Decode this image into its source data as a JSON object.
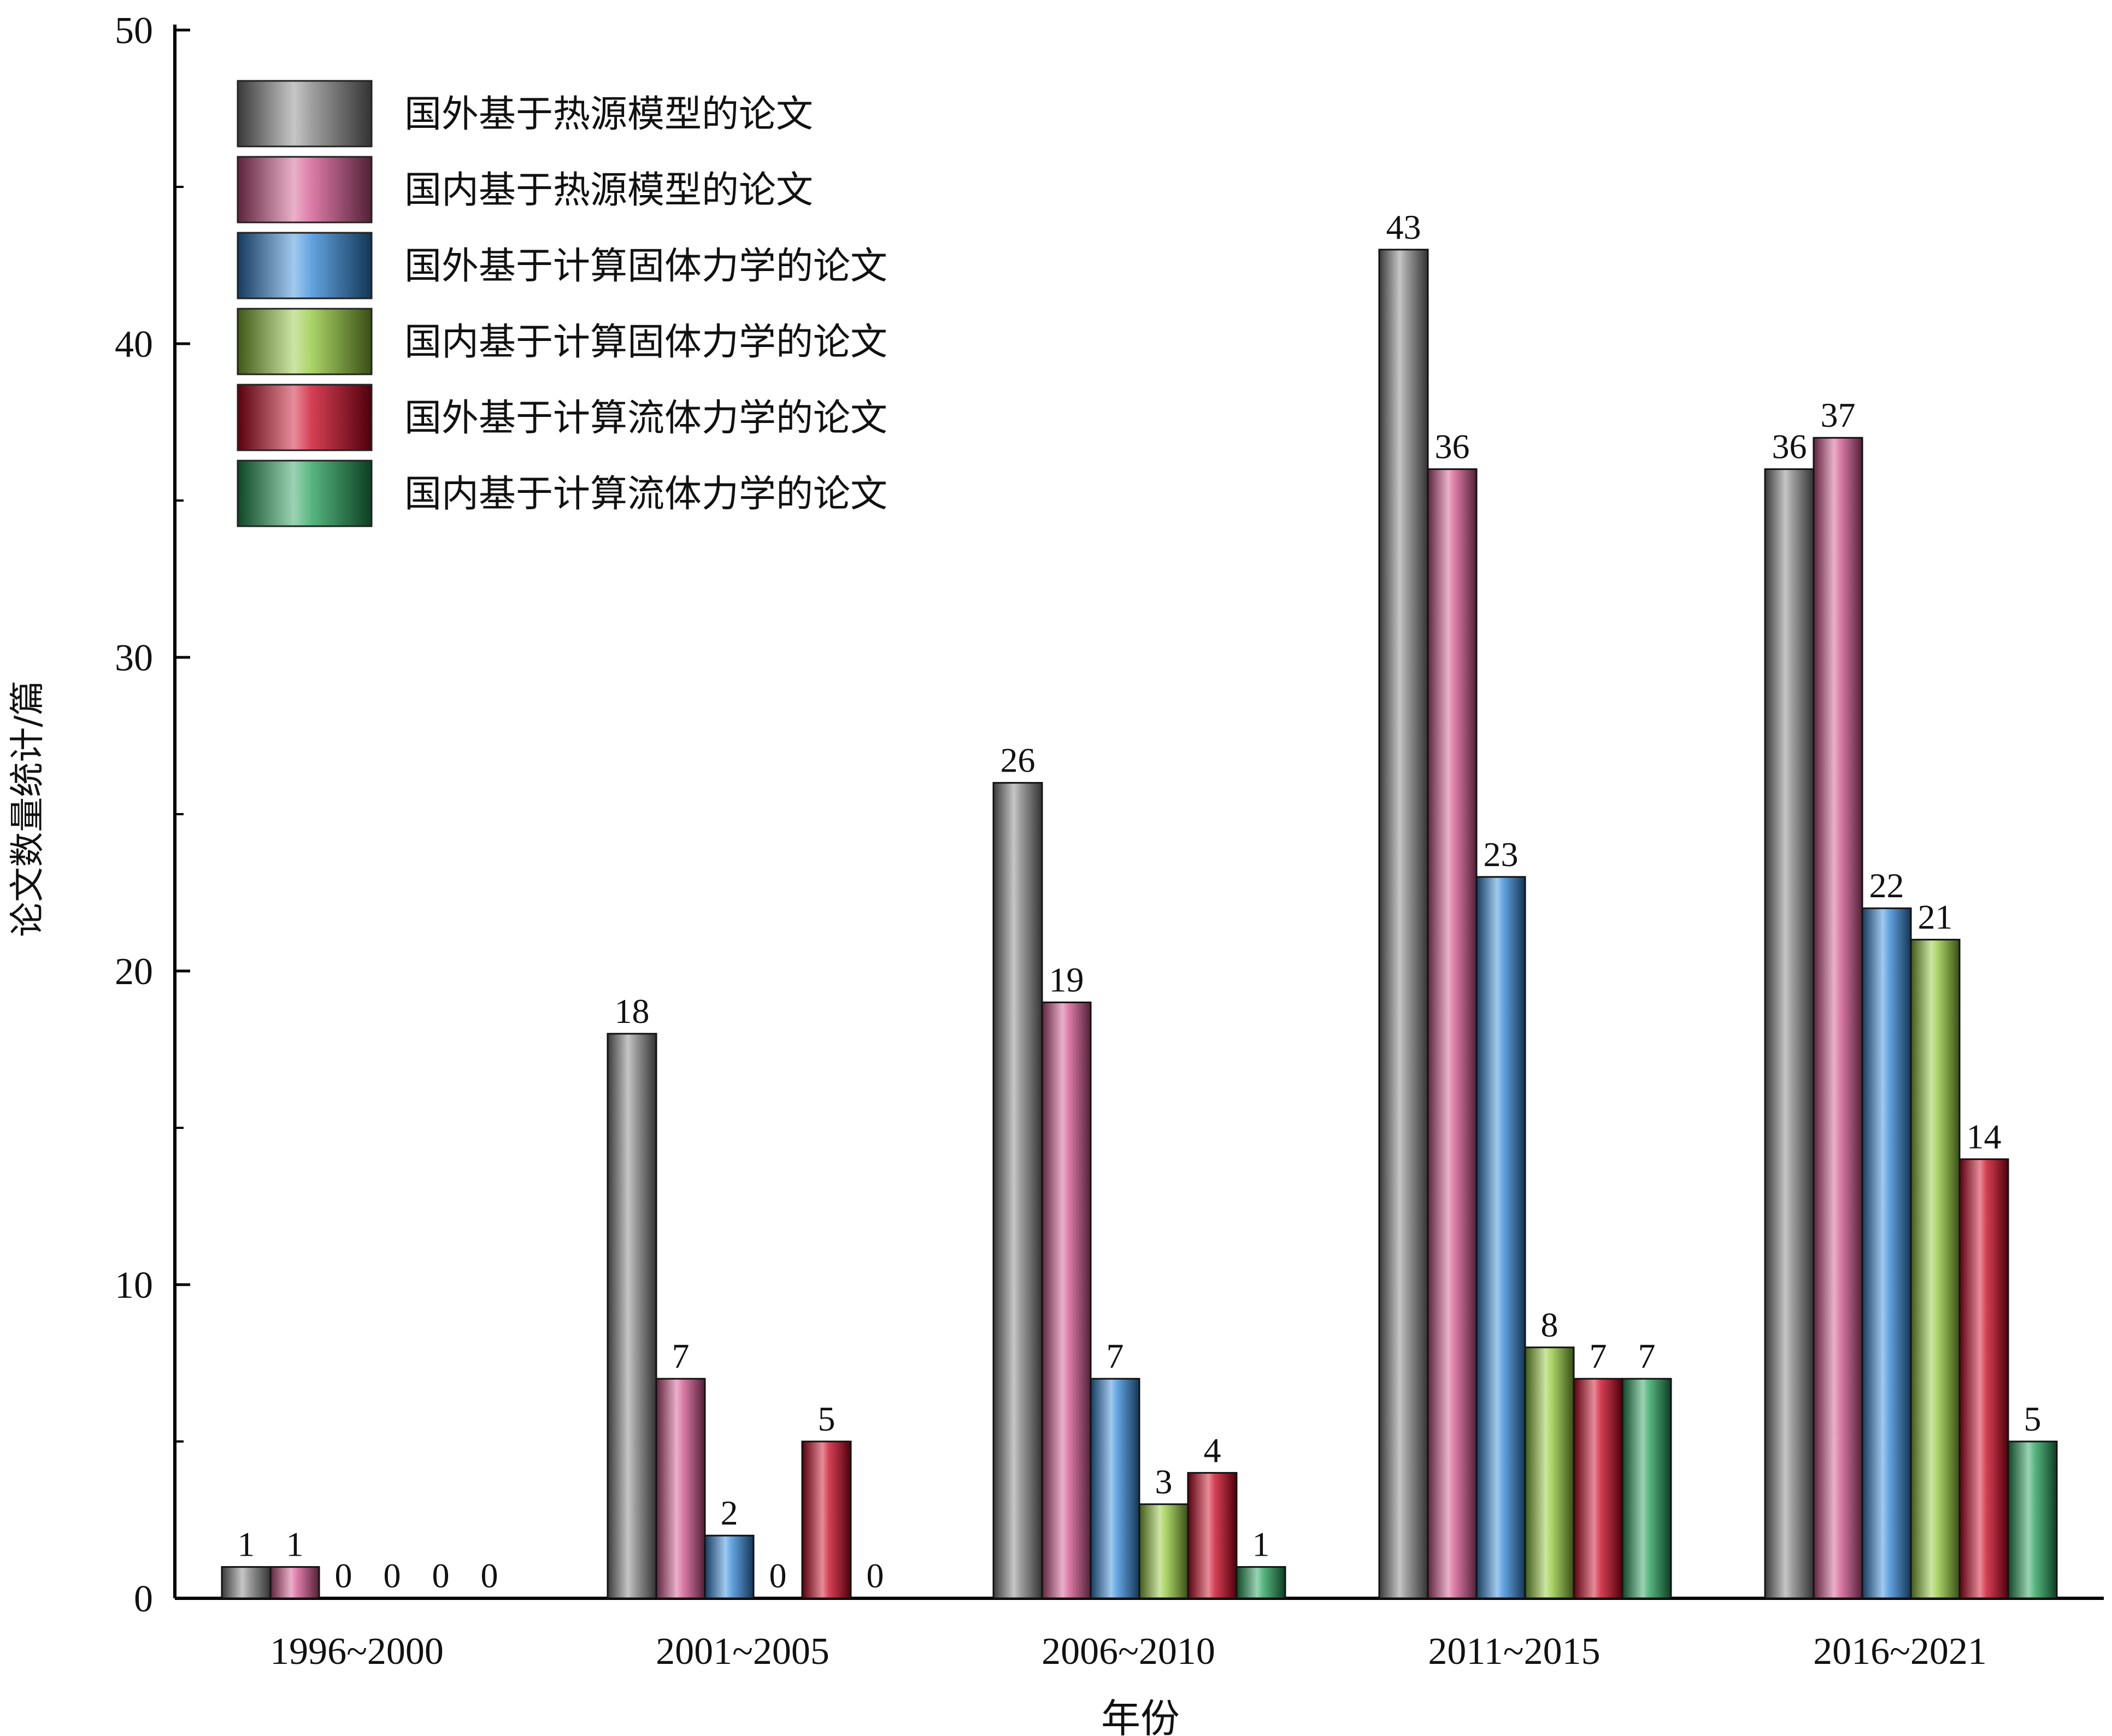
{
  "chart_data": {
    "type": "bar",
    "xlabel": "年份",
    "ylabel": "论文数量统计/篇",
    "ylim": [
      0,
      50
    ],
    "yticks": [
      "0",
      "10",
      "20",
      "30",
      "40",
      "50"
    ],
    "grid": false,
    "legend_position": "top-left",
    "categories": [
      "1996~2000",
      "2001~2005",
      "2006~2010",
      "2011~2015",
      "2016~2021"
    ],
    "series": [
      {
        "name": "国外基于热源模型的论文",
        "color": "#808080",
        "values": [
          1,
          18,
          26,
          43,
          36
        ]
      },
      {
        "name": "国内基于热源模型的论文",
        "color": "#d0508a",
        "values": [
          1,
          7,
          19,
          36,
          37
        ]
      },
      {
        "name": "国外基于计算固体力学的论文",
        "color": "#2f86d6",
        "values": [
          0,
          2,
          7,
          23,
          22
        ]
      },
      {
        "name": "国内基于计算固体力学的论文",
        "color": "#8fc634",
        "values": [
          0,
          0,
          3,
          8,
          21
        ]
      },
      {
        "name": "国外基于计算流体力学的论文",
        "color": "#c8001c",
        "values": [
          0,
          5,
          4,
          7,
          14
        ]
      },
      {
        "name": "国内基于计算流体力学的论文",
        "color": "#1f9e55",
        "values": [
          0,
          0,
          1,
          7,
          5
        ]
      }
    ]
  }
}
